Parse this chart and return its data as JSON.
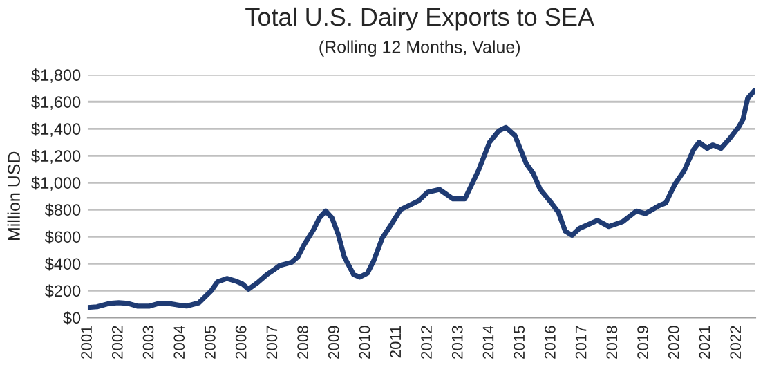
{
  "chart_data": {
    "type": "line",
    "title": "Total U.S. Dairy Exports to SEA",
    "subtitle": "(Rolling 12 Months, Value)",
    "ylabel": "Million USD",
    "xlim": [
      2001,
      2022.6
    ],
    "xticks": [
      2001,
      2002,
      2003,
      2004,
      2005,
      2006,
      2007,
      2008,
      2009,
      2010,
      2011,
      2012,
      2013,
      2014,
      2015,
      2016,
      2017,
      2018,
      2019,
      2020,
      2021,
      2022
    ],
    "ylim": [
      0,
      1800
    ],
    "yticks": [
      {
        "value": 0,
        "label": "$0"
      },
      {
        "value": 200,
        "label": "$200"
      },
      {
        "value": 400,
        "label": "$400"
      },
      {
        "value": 600,
        "label": "$600"
      },
      {
        "value": 800,
        "label": "$800"
      },
      {
        "value": 1000,
        "label": "$1,000"
      },
      {
        "value": 1200,
        "label": "$1,200"
      },
      {
        "value": 1400,
        "label": "$1,400"
      },
      {
        "value": 1600,
        "label": "$1,600"
      },
      {
        "value": 1800,
        "label": "$1,800"
      }
    ],
    "grid": "y",
    "marker": "none",
    "line_style": "solid",
    "series": [
      {
        "color": "#1f3b73",
        "x": [
          2001.0,
          2001.3,
          2001.7,
          2002.0,
          2002.3,
          2002.6,
          2003.0,
          2003.3,
          2003.6,
          2004.0,
          2004.2,
          2004.6,
          2005.0,
          2005.2,
          2005.5,
          2005.8,
          2006.0,
          2006.2,
          2006.5,
          2006.8,
          2007.0,
          2007.2,
          2007.6,
          2007.8,
          2008.0,
          2008.3,
          2008.5,
          2008.7,
          2008.9,
          2009.1,
          2009.3,
          2009.6,
          2009.8,
          2010.05,
          2010.25,
          2010.53,
          2010.82,
          2011.12,
          2011.7,
          2012.0,
          2012.38,
          2012.82,
          2013.2,
          2013.64,
          2014.0,
          2014.3,
          2014.53,
          2014.82,
          2015.19,
          2015.41,
          2015.64,
          2016.0,
          2016.23,
          2016.45,
          2016.67,
          2016.9,
          2017.49,
          2017.86,
          2018.3,
          2018.75,
          2019.04,
          2019.49,
          2019.7,
          2020.0,
          2020.3,
          2020.6,
          2020.78,
          2021.04,
          2021.22,
          2021.49,
          2021.78,
          2022.08,
          2022.2,
          2022.35,
          2022.56
        ],
        "values": [
          75,
          80,
          105,
          110,
          105,
          85,
          85,
          105,
          105,
          90,
          85,
          110,
          200,
          265,
          290,
          270,
          250,
          210,
          260,
          320,
          350,
          385,
          410,
          450,
          540,
          650,
          740,
          790,
          740,
          620,
          450,
          320,
          300,
          330,
          420,
          590,
          690,
          800,
          865,
          930,
          950,
          880,
          880,
          1090,
          1300,
          1385,
          1410,
          1350,
          1140,
          1070,
          950,
          850,
          780,
          640,
          610,
          660,
          720,
          675,
          710,
          790,
          770,
          830,
          850,
          990,
          1090,
          1245,
          1300,
          1255,
          1280,
          1255,
          1330,
          1420,
          1470,
          1625,
          1680
        ]
      }
    ]
  }
}
